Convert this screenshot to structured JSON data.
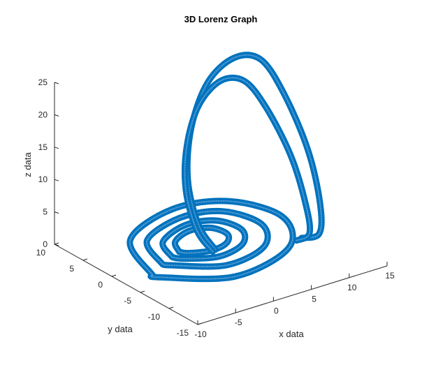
{
  "chart_data": {
    "type": "line",
    "projection": "3d",
    "title": "3D Lorenz Graph",
    "xlabel": "x data",
    "ylabel": "y data",
    "zlabel": "z data",
    "xlim": [
      -10,
      15
    ],
    "ylim": [
      -15,
      10
    ],
    "zlim": [
      0,
      25
    ],
    "xticks": [
      "-10",
      "-5",
      "0",
      "5",
      "10",
      "15"
    ],
    "yticks": [
      "-15",
      "-10",
      "-5",
      "0",
      "5",
      "10"
    ],
    "zticks": [
      "0",
      "5",
      "10",
      "15",
      "20",
      "25"
    ],
    "grid": false,
    "marker": "o",
    "series": [
      {
        "color": "#0072bd",
        "segments": [
          [
            [
              -8.7,
              -5.4,
              2.4
            ],
            [
              -5.3,
              3.0,
              2.4
            ],
            [
              3.0,
              6.6,
              2.4
            ],
            [
              9.1,
              4.6,
              2.4
            ],
            [
              11.2,
              -1.8,
              2.4
            ],
            [
              7.0,
              -8.4,
              2.4
            ],
            [
              -1.9,
              -10.8,
              2.4
            ],
            [
              -8.5,
              -6.2,
              2.4
            ],
            [
              -8.7,
              -5.4,
              2.4
            ]
          ],
          [
            [
              -6.2,
              -3.8,
              2.4
            ],
            [
              -3.9,
              1.9,
              2.4
            ],
            [
              2.4,
              4.4,
              2.4
            ],
            [
              7.0,
              3.0,
              2.4
            ],
            [
              8.3,
              -2.0,
              2.4
            ],
            [
              5.1,
              -6.6,
              2.4
            ],
            [
              -0.9,
              -8.0,
              2.4
            ],
            [
              -5.6,
              -4.6,
              2.4
            ],
            [
              -6.2,
              -3.8,
              2.4
            ]
          ],
          [
            [
              -4.3,
              -3.0,
              2.4
            ],
            [
              -2.8,
              0.6,
              2.4
            ],
            [
              1.6,
              2.6,
              2.4
            ],
            [
              5.0,
              1.6,
              2.4
            ],
            [
              5.8,
              -1.8,
              2.4
            ],
            [
              3.6,
              -4.8,
              2.4
            ],
            [
              -0.3,
              -5.8,
              2.4
            ],
            [
              -3.6,
              -4.0,
              2.4
            ],
            [
              -4.3,
              -3.0,
              2.4
            ]
          ],
          [
            [
              -2.9,
              -2.4,
              2.4
            ],
            [
              -1.7,
              -0.1,
              2.4
            ],
            [
              1.1,
              1.2,
              2.4
            ],
            [
              3.4,
              0.5,
              2.4
            ],
            [
              3.9,
              -1.8,
              2.4
            ],
            [
              2.4,
              -3.6,
              2.4
            ],
            [
              0.0,
              -4.1,
              2.4
            ],
            [
              -2.3,
              -3.2,
              2.4
            ],
            [
              -2.9,
              -2.4,
              2.4
            ]
          ],
          [
            [
              0.5,
              -4.2,
              2.4
            ],
            [
              0.3,
              -1.5,
              5.0
            ],
            [
              1.4,
              1.8,
              10.0
            ],
            [
              3.6,
              4.1,
              16.0
            ],
            [
              7.0,
              5.7,
              21.0
            ],
            [
              9.8,
              4.8,
              24.2
            ],
            [
              11.2,
              2.0,
              24.8
            ],
            [
              11.6,
              -1.6,
              21.0
            ],
            [
              12.0,
              -5.2,
              14.0
            ],
            [
              11.9,
              -7.4,
              7.0
            ],
            [
              11.2,
              -8.2,
              3.0
            ],
            [
              9.6,
              -7.2,
              2.4
            ]
          ],
          [
            [
              0.0,
              -4.4,
              2.4
            ],
            [
              -0.2,
              -1.9,
              4.5
            ],
            [
              0.6,
              1.1,
              9.0
            ],
            [
              2.4,
              3.3,
              14.0
            ],
            [
              5.2,
              4.9,
              18.5
            ],
            [
              7.7,
              4.4,
              21.6
            ],
            [
              9.0,
              2.0,
              22.3
            ],
            [
              9.6,
              -1.0,
              19.5
            ],
            [
              10.3,
              -4.4,
              13.5
            ],
            [
              10.6,
              -6.6,
              7.0
            ],
            [
              10.2,
              -7.8,
              3.2
            ],
            [
              8.8,
              -7.4,
              2.4
            ]
          ]
        ]
      }
    ]
  }
}
